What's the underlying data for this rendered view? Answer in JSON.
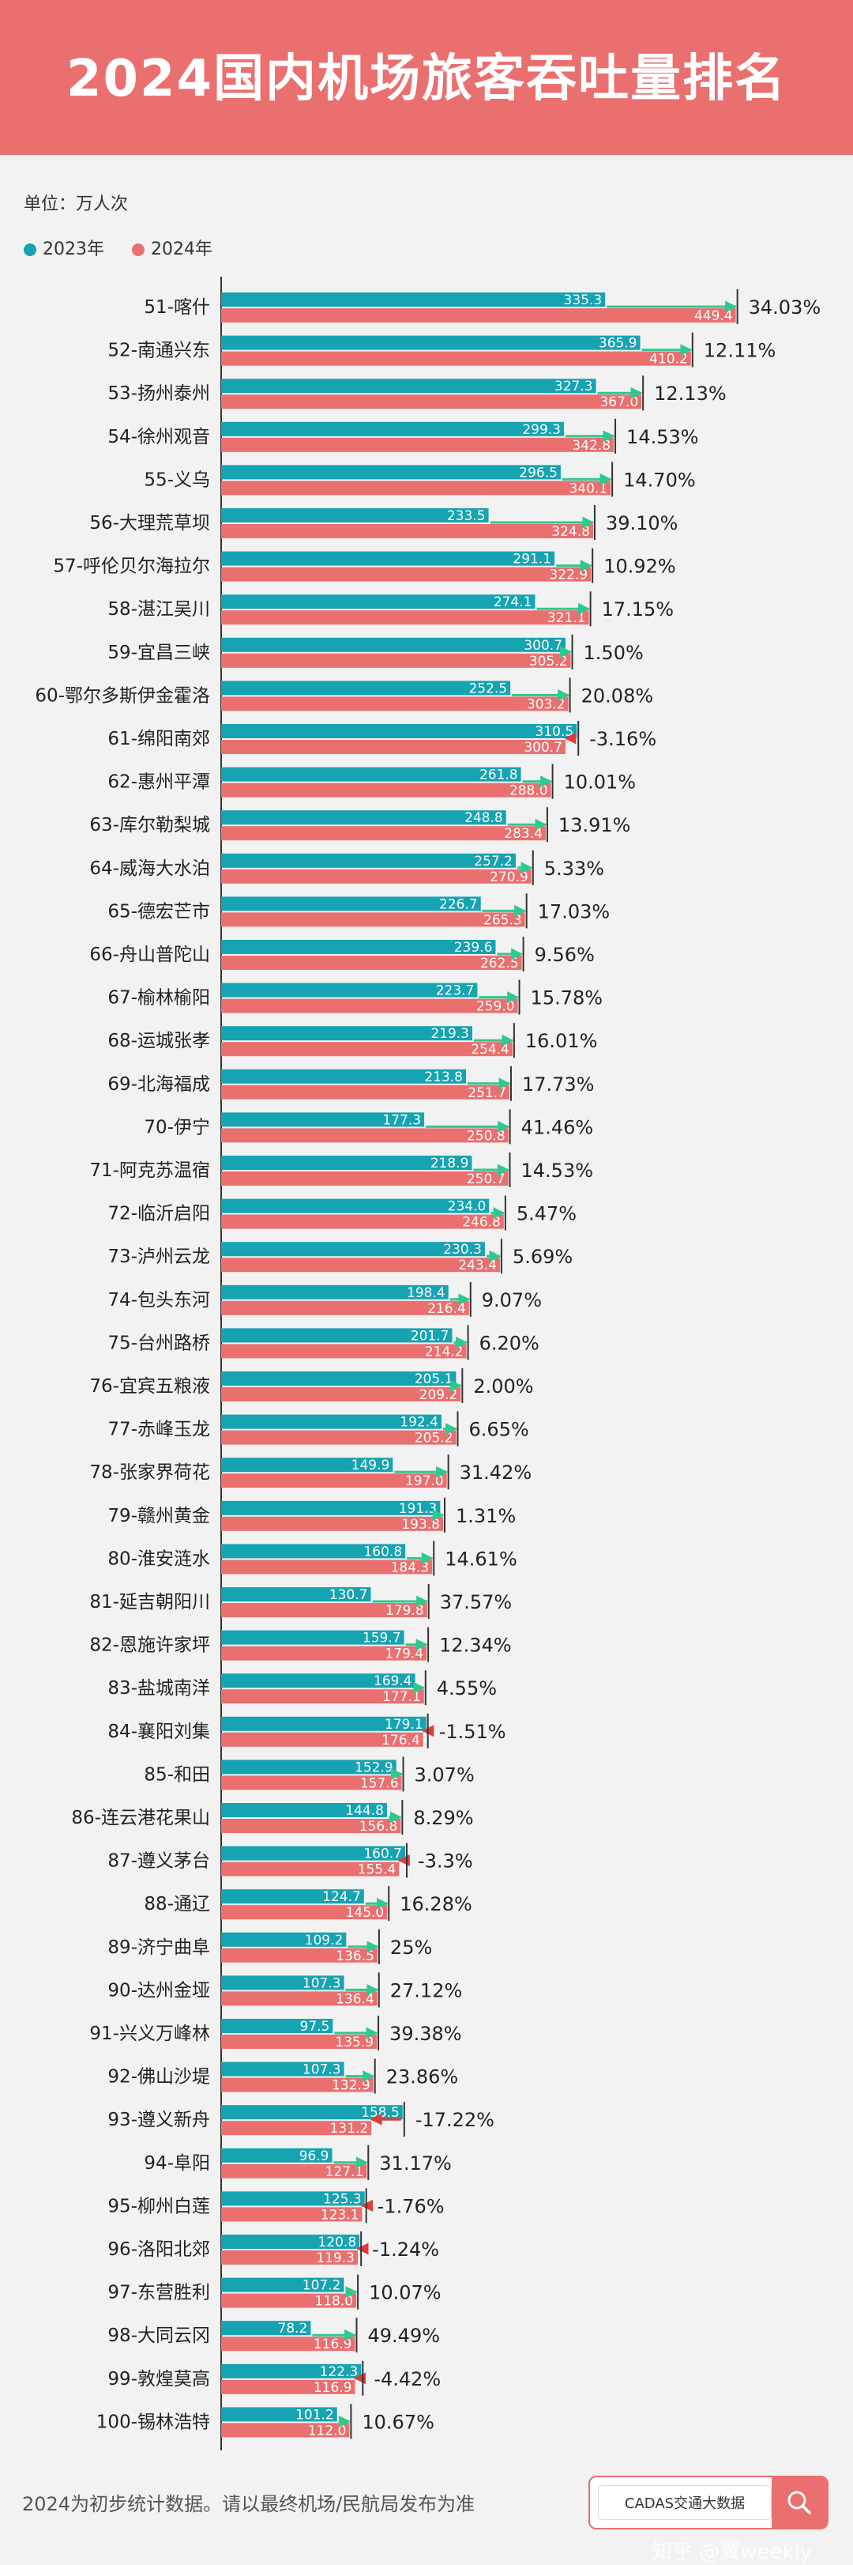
{
  "header": {
    "title": "2024国内机场旅客吞吐量排名"
  },
  "unit_label": "单位：万人次",
  "footer_note": "2024为初步统计数据。请以最终机场/民航局发布为准",
  "source_label": "CADAS交通大数据",
  "watermark": "知乎 @翼weekly",
  "icons": {
    "search": "search-icon"
  },
  "colors": {
    "y2023": "#16a3b2",
    "y2024": "#ea6f6f",
    "up_arrow": "#2ec98f",
    "down_arrow": "#e03a3a",
    "header_bg": "#ea6f6f"
  },
  "chart_data": {
    "type": "bar",
    "orientation": "horizontal",
    "categories": [
      "51-喀什",
      "52-南通兴东",
      "53-扬州泰州",
      "54-徐州观音",
      "55-义乌",
      "56-大理荒草坝",
      "57-呼伦贝尔海拉尔",
      "58-湛江吴川",
      "59-宜昌三峡",
      "60-鄂尔多斯伊金霍洛",
      "61-绵阳南郊",
      "62-惠州平潭",
      "63-库尔勒梨城",
      "64-威海大水泊",
      "65-德宏芒市",
      "66-舟山普陀山",
      "67-榆林榆阳",
      "68-运城张孝",
      "69-北海福成",
      "70-伊宁",
      "71-阿克苏温宿",
      "72-临沂启阳",
      "73-泸州云龙",
      "74-包头东河",
      "75-台州路桥",
      "76-宜宾五粮液",
      "77-赤峰玉龙",
      "78-张家界荷花",
      "79-赣州黄金",
      "80-淮安涟水",
      "81-延吉朝阳川",
      "82-恩施许家坪",
      "83-盐城南洋",
      "84-襄阳刘集",
      "85-和田",
      "86-连云港花果山",
      "87-遵义茅台",
      "88-通辽",
      "89-济宁曲阜",
      "90-达州金垭",
      "91-兴义万峰林",
      "92-佛山沙堤",
      "93-遵义新舟",
      "94-阜阳",
      "95-柳州白莲",
      "96-洛阳北郊",
      "97-东营胜利",
      "98-大同云冈",
      "99-敦煌莫高",
      "100-锡林浩特"
    ],
    "series": [
      {
        "name": "2023年",
        "values": [
          335.3,
          365.9,
          327.3,
          299.3,
          296.5,
          233.5,
          291.1,
          274.1,
          300.7,
          252.5,
          310.5,
          261.8,
          248.8,
          257.2,
          226.7,
          239.6,
          223.7,
          219.3,
          213.8,
          177.3,
          218.9,
          234.0,
          230.3,
          198.4,
          201.7,
          205.1,
          192.4,
          149.9,
          191.3,
          160.8,
          130.7,
          159.7,
          169.4,
          179.1,
          152.9,
          144.8,
          160.7,
          124.7,
          109.2,
          107.3,
          97.5,
          107.3,
          158.5,
          96.9,
          125.3,
          120.8,
          107.2,
          78.2,
          122.3,
          101.2
        ]
      },
      {
        "name": "2024年",
        "values": [
          449.4,
          410.2,
          367.0,
          342.8,
          340.1,
          324.8,
          322.9,
          321.1,
          305.2,
          303.2,
          300.7,
          288.0,
          283.4,
          270.9,
          265.3,
          262.5,
          259.0,
          254.4,
          251.7,
          250.8,
          250.7,
          246.8,
          243.4,
          216.4,
          214.2,
          209.2,
          205.2,
          197.0,
          193.8,
          184.3,
          179.8,
          179.4,
          177.1,
          176.4,
          157.6,
          156.8,
          155.4,
          145.0,
          136.5,
          136.4,
          135.9,
          132.9,
          131.2,
          127.1,
          123.1,
          119.3,
          118.0,
          116.9,
          116.9,
          112.0
        ]
      }
    ],
    "growth_labels": [
      "34.03%",
      "12.11%",
      "12.13%",
      "14.53%",
      "14.70%",
      "39.10%",
      "10.92%",
      "17.15%",
      "1.50%",
      "20.08%",
      "-3.16%",
      "10.01%",
      "13.91%",
      "5.33%",
      "17.03%",
      "9.56%",
      "15.78%",
      "16.01%",
      "17.73%",
      "41.46%",
      "14.53%",
      "5.47%",
      "5.69%",
      "9.07%",
      "6.20%",
      "2.00%",
      "6.65%",
      "31.42%",
      "1.31%",
      "14.61%",
      "37.57%",
      "12.34%",
      "4.55%",
      "-1.51%",
      "3.07%",
      "8.29%",
      "-3.3%",
      "16.28%",
      "25%",
      "27.12%",
      "39.38%",
      "23.86%",
      "-17.22%",
      "31.17%",
      "-1.76%",
      "-1.24%",
      "10.07%",
      "49.49%",
      "-4.42%",
      "10.67%"
    ],
    "legend_placement": "top-left",
    "unit": "万人次"
  }
}
